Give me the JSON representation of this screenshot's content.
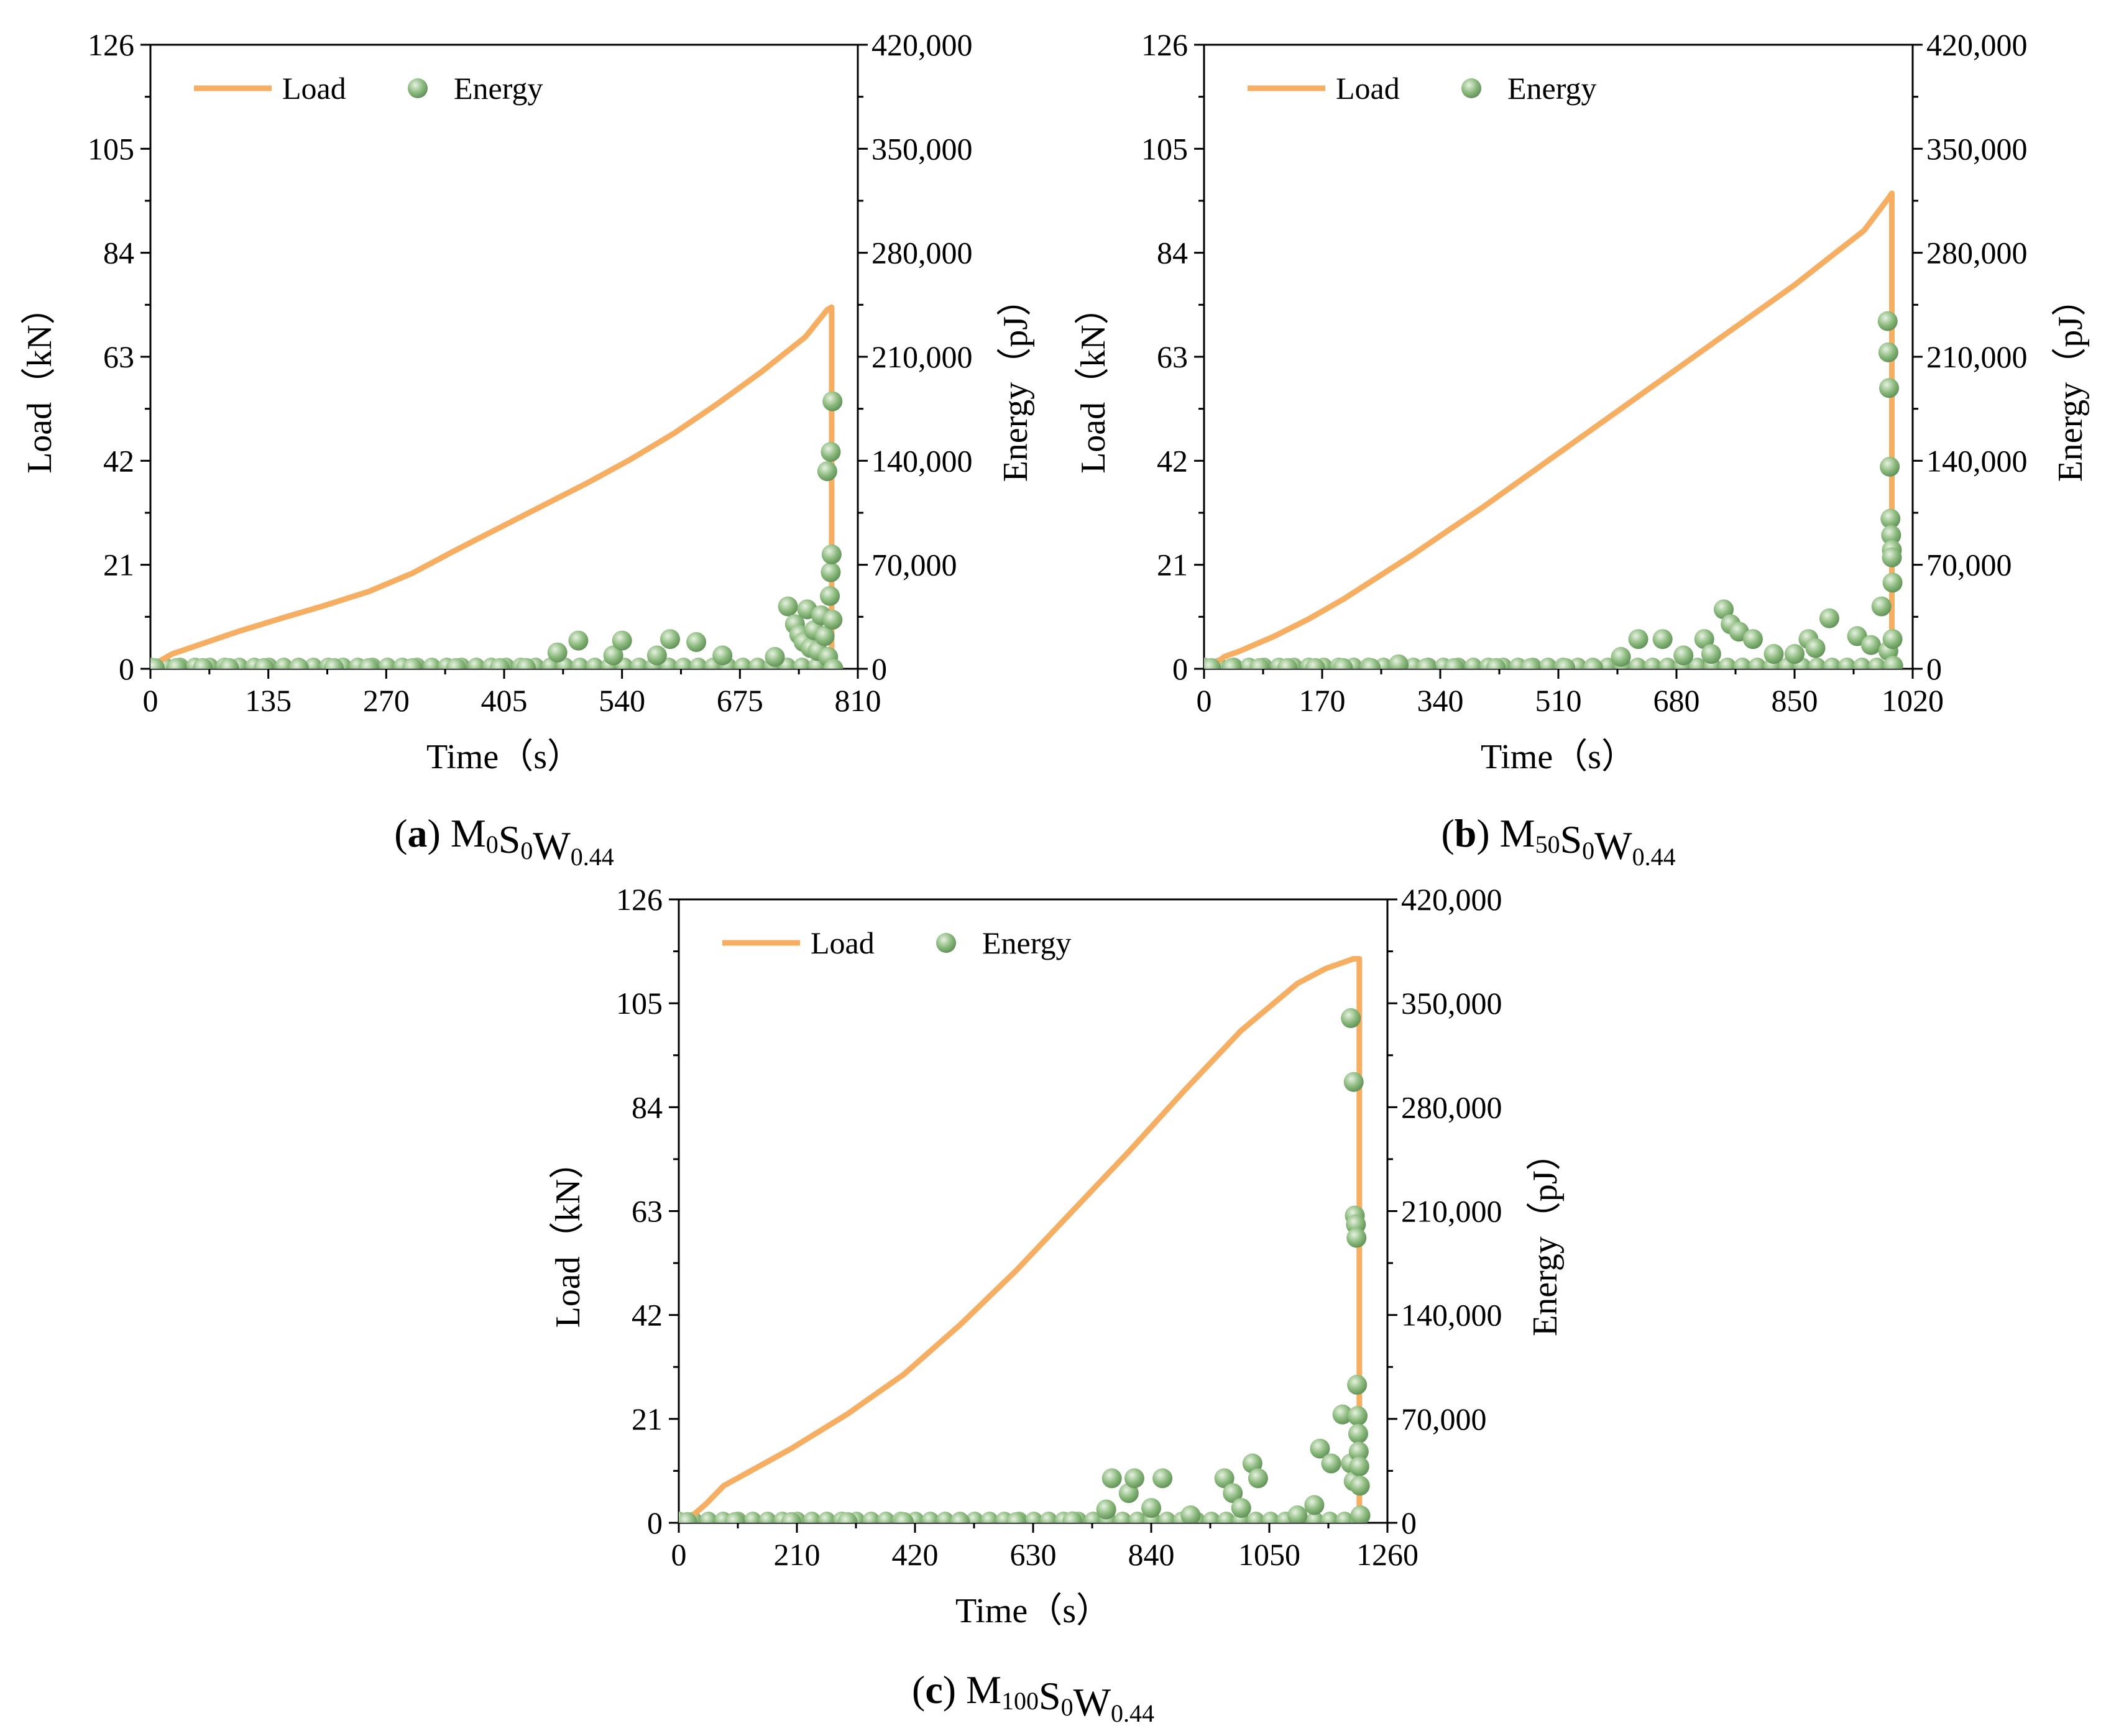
{
  "colors": {
    "load": "#F5AE62",
    "energy": "#8DBB7F",
    "energy_highlight": "#E6F2E0",
    "energy_shade": "#5E8E55"
  },
  "chart_data": [
    {
      "type": "line",
      "panel": "a",
      "caption": {
        "letter": "a",
        "parts": [
          [
            "M",
            "0"
          ],
          [
            "S",
            "0"
          ],
          [
            "W",
            "0.44"
          ]
        ]
      },
      "xlabel": "Time（s）",
      "ylabel": "Load（kN）",
      "y2label": "Energy（pJ）",
      "xlim": [
        0,
        810
      ],
      "ylim": [
        0,
        126
      ],
      "y2lim": [
        0,
        420000
      ],
      "x_ticks": [
        "0",
        "135",
        "270",
        "405",
        "540",
        "675",
        "810"
      ],
      "y_ticks": [
        "0",
        "21",
        "42",
        "63",
        "84",
        "105",
        "126"
      ],
      "y2_ticks": [
        "0",
        "70,000",
        "140,000",
        "210,000",
        "280,000",
        "350,000",
        "420,000"
      ],
      "legend": {
        "placement": "top-left",
        "load": "Load",
        "energy": "Energy"
      },
      "series": [
        {
          "name": "Load",
          "kind": "line",
          "axis": "left",
          "x": [
            0,
            10,
            25,
            50,
            100,
            150,
            200,
            250,
            300,
            350,
            400,
            450,
            500,
            550,
            600,
            650,
            700,
            750,
            775,
            780,
            780
          ],
          "y": [
            0,
            1.5,
            3,
            4.5,
            7.5,
            10.2,
            12.8,
            15.6,
            19.3,
            24,
            28.5,
            33,
            37.5,
            42.3,
            47.6,
            53.6,
            60,
            67,
            72.5,
            73,
            0
          ]
        },
        {
          "name": "Energy",
          "kind": "scatter",
          "axis": "right",
          "x": [
            5,
            30,
            60,
            90,
            130,
            170,
            210,
            250,
            300,
            350,
            400,
            430,
            466,
            490,
            530,
            540,
            580,
            595,
            625,
            655,
            715,
            730,
            738,
            743,
            748,
            752,
            756,
            760,
            764,
            768,
            772,
            776,
            778,
            779,
            780,
            781
          ],
          "y": [
            500,
            500,
            500,
            500,
            500,
            500,
            500,
            500,
            500,
            500,
            500,
            600,
            11000,
            19000,
            9000,
            19000,
            9000,
            20000,
            18000,
            9000,
            8000,
            42000,
            30000,
            23000,
            18000,
            40000,
            14000,
            26000,
            12000,
            36000,
            22000,
            8000,
            49000,
            65000,
            77000,
            180000
          ]
        },
        {
          "name": "Energy",
          "kind": "scatter",
          "axis": "right",
          "x": [
            775,
            779,
            781,
            782
          ],
          "y": [
            133000,
            146000,
            33000,
            0
          ]
        }
      ]
    },
    {
      "type": "line",
      "panel": "b",
      "caption": {
        "letter": "b",
        "parts": [
          [
            "M",
            "50"
          ],
          [
            "S",
            "0"
          ],
          [
            "W",
            "0.44"
          ]
        ]
      },
      "xlabel": "Time（s）",
      "ylabel": "Load（kN）",
      "y2label": "Energy（pJ）",
      "xlim": [
        0,
        1020
      ],
      "ylim": [
        0,
        126
      ],
      "y2lim": [
        0,
        420000
      ],
      "x_ticks": [
        "0",
        "170",
        "340",
        "510",
        "680",
        "850",
        "1020"
      ],
      "y_ticks": [
        "0",
        "21",
        "42",
        "63",
        "84",
        "105",
        "126"
      ],
      "y2_ticks": [
        "0",
        "70,000",
        "140,000",
        "210,000",
        "280,000",
        "350,000",
        "420,000"
      ],
      "legend": {
        "placement": "top-left",
        "load": "Load",
        "energy": "Energy"
      },
      "series": [
        {
          "name": "Load",
          "kind": "line",
          "axis": "left",
          "x": [
            0,
            15,
            30,
            50,
            100,
            150,
            200,
            250,
            300,
            350,
            400,
            450,
            500,
            550,
            600,
            650,
            700,
            750,
            800,
            850,
            900,
            950,
            985,
            990,
            990
          ],
          "y": [
            0,
            1,
            2.5,
            3.5,
            6.5,
            10,
            14,
            18.5,
            23,
            27.8,
            32.5,
            37.5,
            42.5,
            47.5,
            52.5,
            57.5,
            62.5,
            67.5,
            72.5,
            77.5,
            83,
            88.5,
            95,
            96,
            0
          ]
        },
        {
          "name": "Energy",
          "kind": "scatter",
          "axis": "right",
          "x": [
            10,
            40,
            80,
            120,
            160,
            200,
            240,
            280,
            320,
            360,
            420,
            470,
            520,
            560,
            600,
            625,
            660,
            690,
            720,
            730,
            748,
            758,
            770,
            790,
            820,
            850,
            870,
            880,
            900,
            940,
            960,
            975,
            985
          ],
          "y": [
            500,
            500,
            500,
            500,
            500,
            500,
            500,
            3000,
            500,
            500,
            500,
            500,
            500,
            500,
            8000,
            20000,
            20000,
            9000,
            20000,
            10000,
            40000,
            30000,
            25000,
            20000,
            10000,
            10000,
            20000,
            14000,
            34000,
            22000,
            16000,
            42000,
            12000
          ]
        },
        {
          "name": "Energy",
          "kind": "scatter",
          "axis": "right",
          "x": [
            984,
            985,
            986,
            987,
            988,
            989,
            990,
            990,
            991,
            991,
            992
          ],
          "y": [
            234000,
            213000,
            189000,
            136000,
            101000,
            90000,
            80000,
            75000,
            58000,
            20000,
            2000
          ]
        }
      ]
    },
    {
      "type": "line",
      "panel": "c",
      "caption": {
        "letter": "c",
        "parts": [
          [
            "M",
            "100"
          ],
          [
            "S",
            "0"
          ],
          [
            "W",
            "0.44"
          ]
        ]
      },
      "xlabel": "Time（s）",
      "ylabel": "Load（kN）",
      "y2label": "Energy（pJ）",
      "xlim": [
        0,
        1260
      ],
      "ylim": [
        0,
        126
      ],
      "y2lim": [
        0,
        420000
      ],
      "x_ticks": [
        "0",
        "210",
        "420",
        "630",
        "840",
        "1050",
        "1260"
      ],
      "y_ticks": [
        "0",
        "21",
        "42",
        "63",
        "84",
        "105",
        "126"
      ],
      "y2_ticks": [
        "0",
        "70,000",
        "140,000",
        "210,000",
        "280,000",
        "350,000",
        "420,000"
      ],
      "legend": {
        "placement": "top-left",
        "load": "Load",
        "energy": "Energy"
      },
      "series": [
        {
          "name": "Load",
          "kind": "line",
          "axis": "left",
          "x": [
            0,
            20,
            50,
            80,
            120,
            200,
            300,
            400,
            500,
            600,
            700,
            800,
            900,
            1000,
            1100,
            1150,
            1200,
            1210,
            1210
          ],
          "y": [
            0,
            1,
            4,
            7.5,
            10,
            15,
            22,
            30,
            40,
            51,
            63,
            75,
            87.5,
            99.5,
            109,
            112,
            114,
            114,
            0
          ]
        },
        {
          "name": "Energy",
          "kind": "scatter",
          "axis": "right",
          "x": [
            15,
            100,
            200,
            300,
            400,
            500,
            600,
            700,
            760,
            770,
            800,
            810,
            840,
            860,
            910,
            970,
            985,
            1000,
            1020,
            1030,
            1100,
            1130,
            1140,
            1160,
            1180,
            1195,
            1200
          ],
          "y": [
            500,
            500,
            500,
            500,
            500,
            500,
            500,
            1000,
            9000,
            30000,
            20000,
            30000,
            10000,
            30000,
            5000,
            30000,
            20000,
            10000,
            40000,
            30000,
            5000,
            12000,
            50000,
            40000,
            73000,
            40000,
            28000
          ]
        },
        {
          "name": "Energy",
          "kind": "scatter",
          "axis": "right",
          "x": [
            1195,
            1200,
            1202,
            1204,
            1205,
            1206,
            1207,
            1208,
            1209,
            1210,
            1211,
            1212
          ],
          "y": [
            340000,
            297000,
            207000,
            201000,
            192000,
            93000,
            72000,
            60000,
            48000,
            38000,
            25000,
            5000
          ]
        }
      ]
    }
  ]
}
